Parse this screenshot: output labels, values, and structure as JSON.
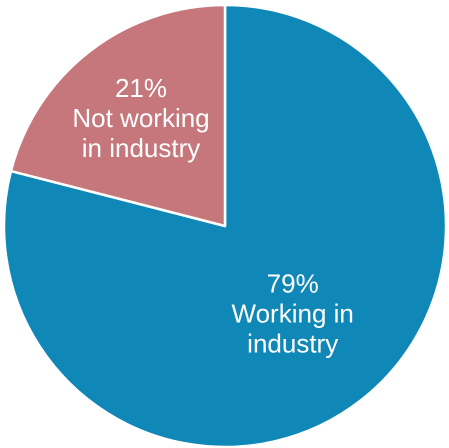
{
  "chart_data": {
    "type": "pie",
    "slices": [
      {
        "value": 79,
        "percent_label": "79%",
        "label_lines": [
          "Working in",
          "industry"
        ],
        "color": "#0F88B7"
      },
      {
        "value": 21,
        "percent_label": "21%",
        "label_lines": [
          "Not working",
          "in industry"
        ],
        "color": "#C6777C"
      }
    ],
    "start": "12 o'clock",
    "direction": "clockwise",
    "legend": "none"
  }
}
